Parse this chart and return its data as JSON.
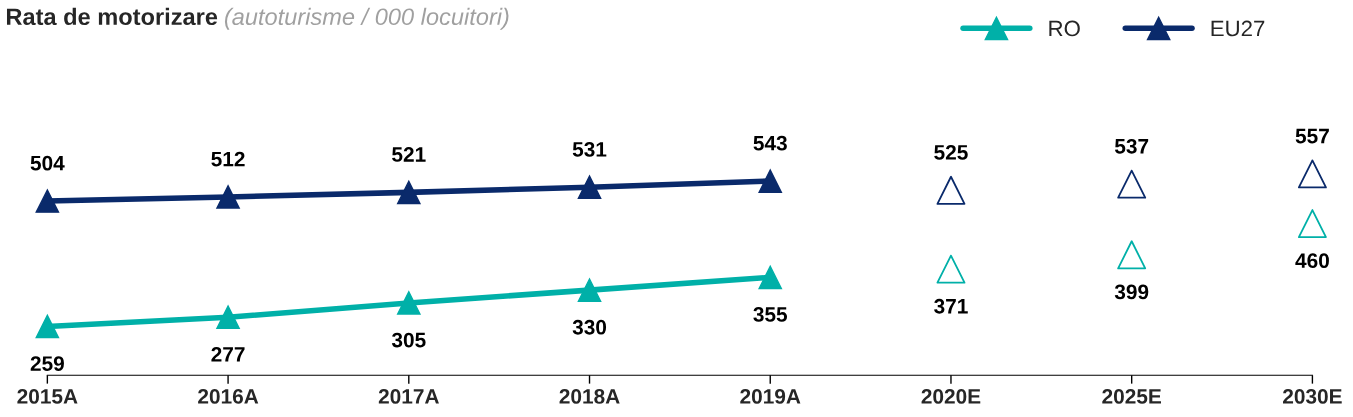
{
  "chart_data": {
    "type": "line",
    "title": "Rata de motorizare",
    "subtitle": "(autoturisme / 000 locuitori)",
    "categories": [
      "2015A",
      "2016A",
      "2017A",
      "2018A",
      "2019A",
      "2020E",
      "2025E",
      "2030E"
    ],
    "series": [
      {
        "name": "RO",
        "color": "#00b0a8",
        "values": [
          259,
          277,
          305,
          330,
          355,
          null,
          null,
          null
        ]
      },
      {
        "name": "EU27",
        "color": "#0a2a6b",
        "values": [
          504,
          512,
          521,
          531,
          543,
          null,
          null,
          null
        ]
      },
      {
        "color": "#00b0a8",
        "type": "scatter",
        "values": [
          null,
          null,
          null,
          null,
          null,
          371,
          399,
          460
        ]
      },
      {
        "color": "#0a2a6b",
        "type": "scatter",
        "values": [
          null,
          null,
          null,
          null,
          null,
          525,
          537,
          557
        ]
      }
    ],
    "marker": "triangle",
    "data_labels": true,
    "legend": "top right",
    "grid": false
  }
}
